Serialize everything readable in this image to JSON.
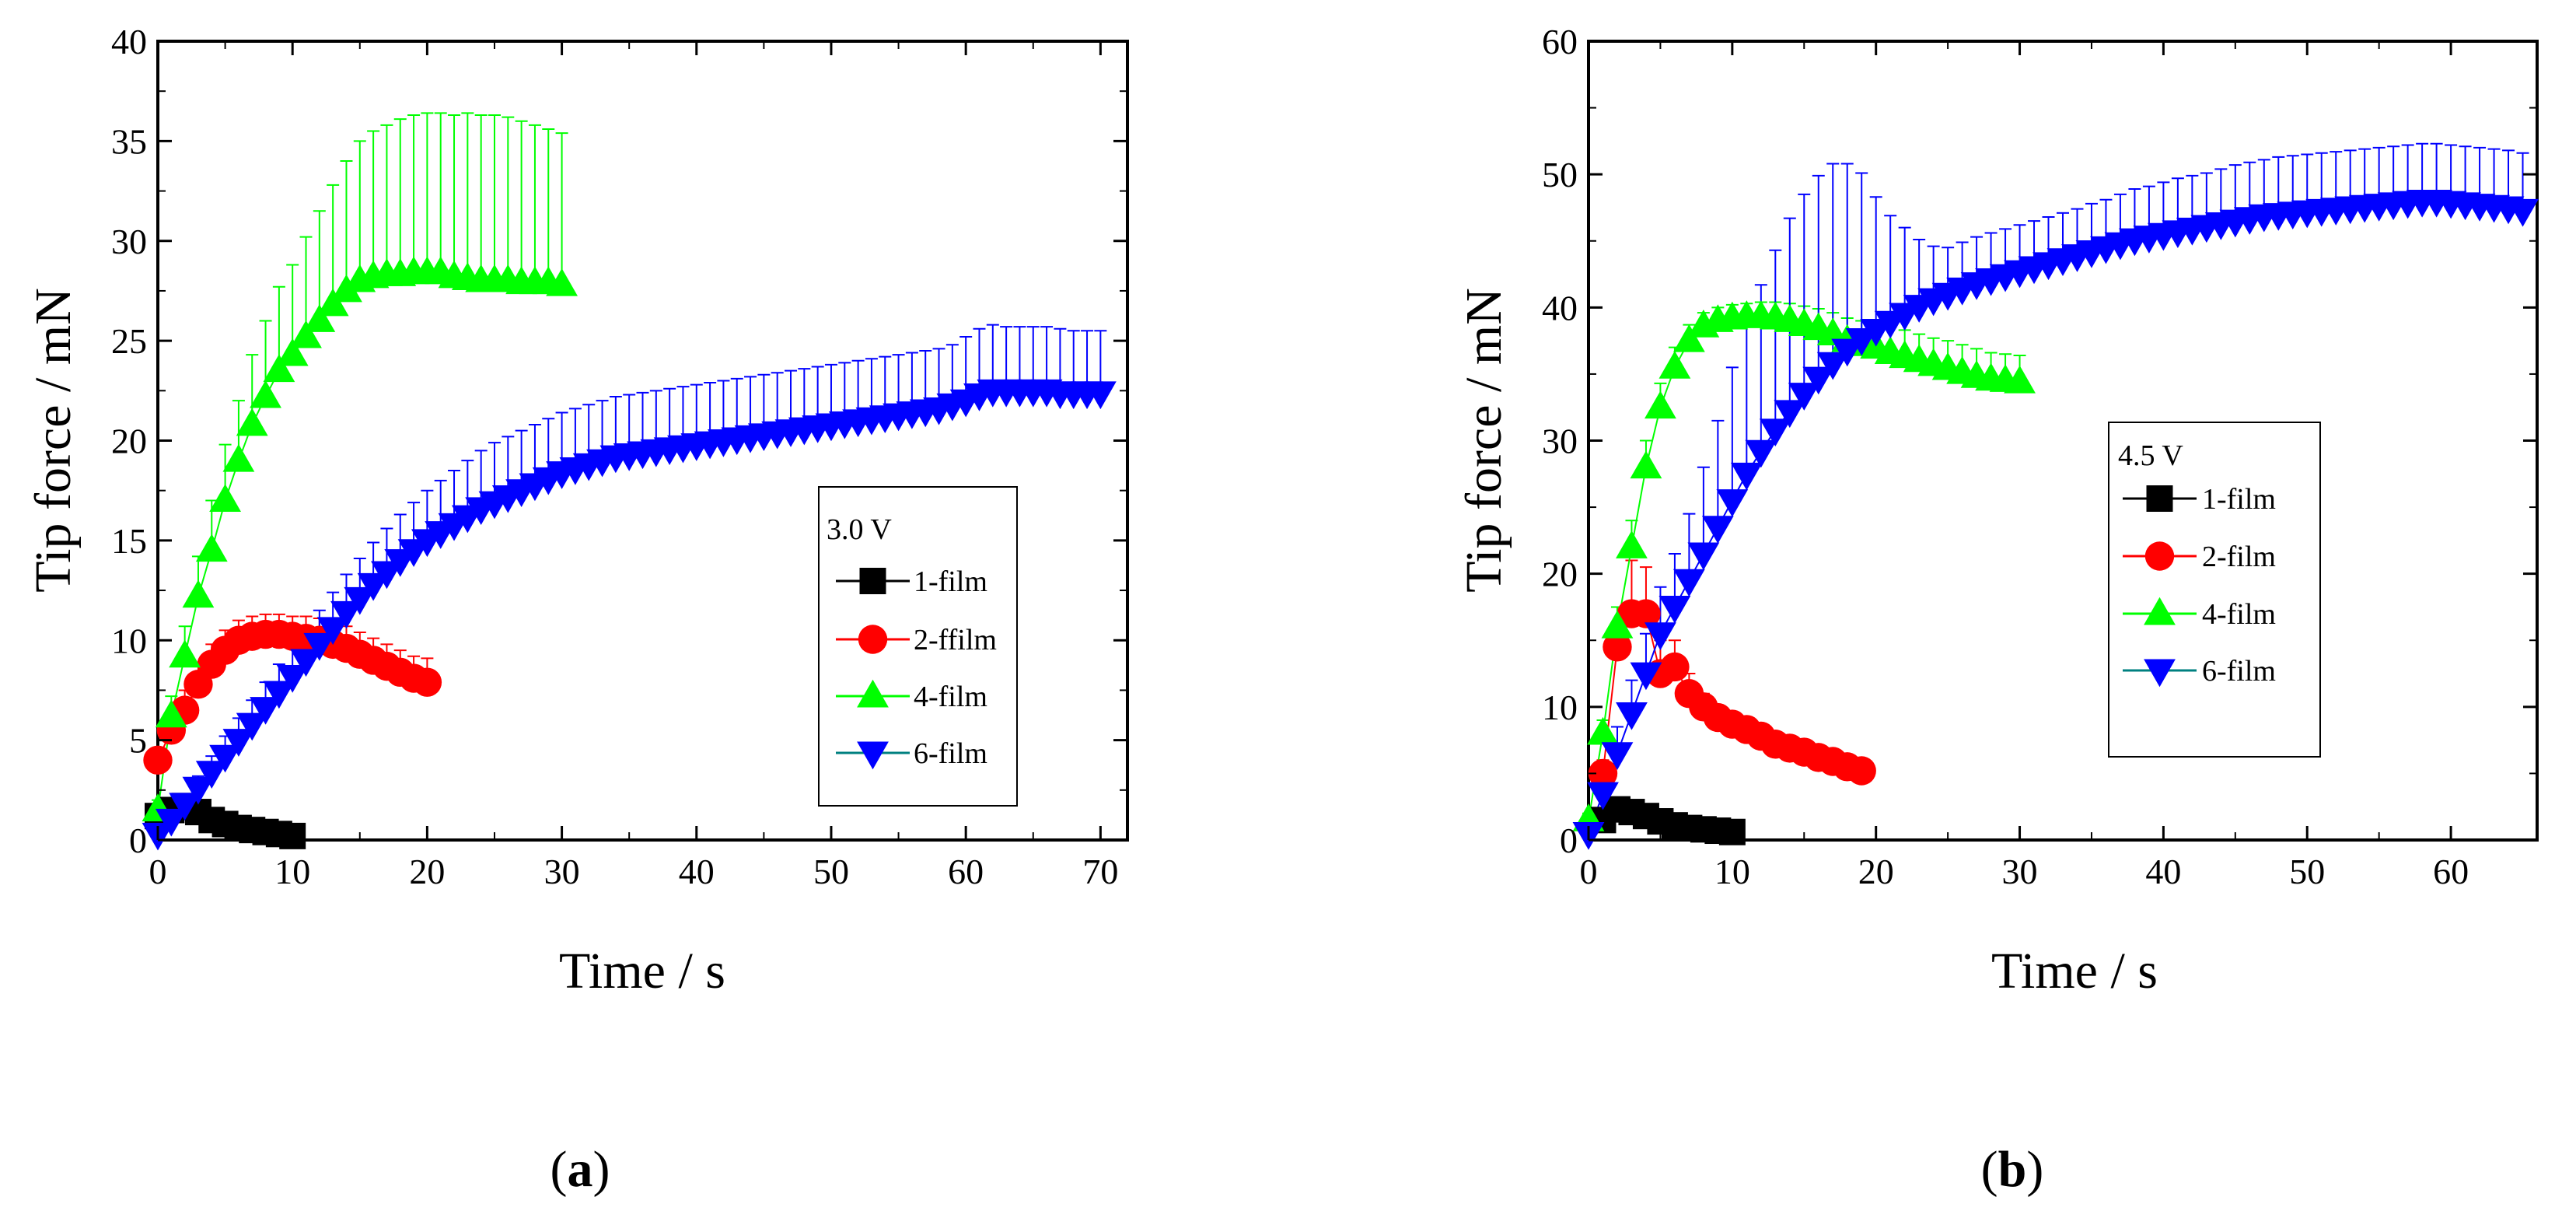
{
  "chart_data": [
    {
      "panel": "a",
      "type": "scatter",
      "caption_open": "(",
      "caption_label": "a",
      "caption_close": ")",
      "xlabel": "Time / s",
      "ylabel": "Tip force / mN",
      "xlim": [
        0,
        72
      ],
      "ylim": [
        0,
        40
      ],
      "xticks": [
        0,
        10,
        20,
        30,
        40,
        50,
        60,
        70
      ],
      "yticks": [
        0,
        5,
        10,
        15,
        20,
        25,
        30,
        35,
        40
      ],
      "legend_title": "3.0 V",
      "legend_position": "center-right",
      "series": [
        {
          "name": "1-film",
          "color": "#000000",
          "marker": "square",
          "x": [
            0,
            1,
            2,
            3,
            4,
            5,
            6,
            7,
            8,
            9,
            10
          ],
          "y": [
            1.2,
            1.5,
            1.7,
            1.4,
            1.0,
            0.8,
            0.6,
            0.5,
            0.4,
            0.3,
            0.2
          ],
          "err": [
            0.3,
            0.4,
            0.4,
            0.3,
            0.3,
            0.2,
            0.2,
            0.2,
            0.1,
            0.1,
            0.1
          ]
        },
        {
          "name": "2-ffilm",
          "color": "#ff0000",
          "marker": "circle",
          "x": [
            0,
            1,
            2,
            3,
            4,
            5,
            6,
            7,
            8,
            9,
            10,
            11,
            12,
            13,
            14,
            15,
            16,
            17,
            18,
            19,
            20
          ],
          "y": [
            4.0,
            5.5,
            6.5,
            7.8,
            8.8,
            9.5,
            10.0,
            10.2,
            10.3,
            10.3,
            10.2,
            10.1,
            10.0,
            9.8,
            9.6,
            9.3,
            9.0,
            8.7,
            8.4,
            8.1,
            7.9
          ],
          "err": [
            0.5,
            0.8,
            1.0,
            1.0,
            1.0,
            1.0,
            1.0,
            1.0,
            1.0,
            1.0,
            1.0,
            1.1,
            1.1,
            1.1,
            1.1,
            1.1,
            1.1,
            1.1,
            1.1,
            1.1,
            1.2
          ]
        },
        {
          "name": "4-film",
          "color": "#00ff00",
          "marker": "triangle-up",
          "x": [
            0,
            1,
            2,
            3,
            4,
            5,
            6,
            7,
            8,
            9,
            10,
            11,
            12,
            13,
            14,
            15,
            16,
            17,
            18,
            19,
            20,
            21,
            22,
            23,
            24,
            25,
            26,
            27,
            28,
            29,
            30
          ],
          "y": [
            1.5,
            6.2,
            9.2,
            12.2,
            14.5,
            17.0,
            19.0,
            20.8,
            22.2,
            23.5,
            24.3,
            25.2,
            26.0,
            26.8,
            27.5,
            28.0,
            28.2,
            28.3,
            28.3,
            28.4,
            28.4,
            28.4,
            28.2,
            28.1,
            28.0,
            28.0,
            28.0,
            27.9,
            27.9,
            27.9,
            27.8
          ],
          "err": [
            0.5,
            1.0,
            1.5,
            2.0,
            2.5,
            2.8,
            3.0,
            3.5,
            3.8,
            4.2,
            4.5,
            5.0,
            5.5,
            6.0,
            6.5,
            7.0,
            7.3,
            7.5,
            7.8,
            7.9,
            8.0,
            8.0,
            8.1,
            8.3,
            8.3,
            8.3,
            8.2,
            8.1,
            7.9,
            7.7,
            7.6
          ]
        },
        {
          "name": "6-film",
          "color": "#0000ff",
          "marker": "triangle-down",
          "x": [
            0,
            1,
            2,
            3,
            4,
            5,
            6,
            7,
            8,
            9,
            10,
            11,
            12,
            13,
            14,
            15,
            16,
            17,
            18,
            19,
            20,
            21,
            22,
            23,
            24,
            25,
            26,
            27,
            28,
            29,
            30,
            31,
            32,
            33,
            34,
            35,
            36,
            37,
            38,
            39,
            40,
            41,
            42,
            43,
            44,
            45,
            46,
            47,
            48,
            49,
            50,
            51,
            52,
            53,
            54,
            55,
            56,
            57,
            58,
            59,
            60,
            61,
            62,
            63,
            64,
            65,
            66,
            67,
            68,
            69,
            70
          ],
          "y": [
            0.3,
            1.0,
            1.8,
            2.6,
            3.4,
            4.2,
            5.0,
            5.8,
            6.6,
            7.4,
            8.2,
            9.0,
            9.8,
            10.6,
            11.4,
            12.1,
            12.8,
            13.4,
            14.0,
            14.5,
            15.0,
            15.4,
            15.8,
            16.2,
            16.6,
            16.9,
            17.2,
            17.5,
            17.8,
            18.1,
            18.4,
            18.6,
            18.8,
            19.0,
            19.2,
            19.3,
            19.4,
            19.5,
            19.6,
            19.7,
            19.8,
            19.9,
            20.0,
            20.1,
            20.2,
            20.3,
            20.4,
            20.5,
            20.6,
            20.7,
            20.8,
            20.9,
            21.0,
            21.1,
            21.2,
            21.3,
            21.4,
            21.5,
            21.6,
            21.8,
            22.0,
            22.3,
            22.5,
            22.5,
            22.5,
            22.5,
            22.5,
            22.4,
            22.4,
            22.4,
            22.4
          ],
          "err": [
            0.1,
            0.2,
            0.4,
            0.6,
            0.8,
            1.0,
            1.1,
            1.2,
            1.3,
            1.4,
            1.5,
            1.6,
            1.7,
            1.8,
            1.9,
            2.0,
            2.1,
            2.2,
            2.3,
            2.4,
            2.5,
            2.6,
            2.7,
            2.8,
            2.9,
            3.0,
            3.0,
            3.0,
            3.0,
            3.0,
            3.0,
            3.0,
            3.0,
            3.0,
            3.0,
            3.0,
            3.0,
            3.0,
            3.0,
            3.0,
            3.0,
            3.0,
            3.0,
            3.0,
            3.0,
            3.0,
            3.0,
            3.0,
            3.0,
            3.0,
            3.0,
            3.0,
            3.0,
            3.0,
            3.0,
            3.0,
            3.0,
            3.0,
            3.0,
            3.0,
            3.2,
            3.3,
            3.3,
            3.2,
            3.2,
            3.2,
            3.2,
            3.2,
            3.1,
            3.1,
            3.1
          ]
        }
      ]
    },
    {
      "panel": "b",
      "type": "scatter",
      "caption_open": "(",
      "caption_label": "b",
      "caption_close": ")",
      "xlabel": "Time / s",
      "ylabel": "Tip force / mN",
      "xlim": [
        0,
        66
      ],
      "ylim": [
        0,
        60
      ],
      "xticks": [
        0,
        10,
        20,
        30,
        40,
        50,
        60
      ],
      "yticks": [
        0,
        10,
        20,
        30,
        40,
        50,
        60
      ],
      "legend_title": "4.5 V",
      "legend_position": "center-left",
      "series": [
        {
          "name": "1-film",
          "color": "#000000",
          "marker": "square",
          "x": [
            1,
            2,
            3,
            4,
            5,
            6,
            7,
            8,
            9,
            10
          ],
          "y": [
            1.5,
            2.3,
            2.1,
            1.8,
            1.4,
            1.1,
            0.9,
            0.8,
            0.7,
            0.6
          ],
          "err": [
            0.4,
            0.6,
            0.5,
            0.4,
            0.3,
            0.3,
            0.2,
            0.2,
            0.2,
            0.2
          ]
        },
        {
          "name": "2-film",
          "color": "#ff0000",
          "marker": "circle",
          "x": [
            1,
            2,
            3,
            4,
            5,
            6,
            7,
            8,
            9,
            10,
            11,
            12,
            13,
            14,
            15,
            16,
            17,
            18,
            19
          ],
          "y": [
            5.0,
            14.5,
            17.0,
            17.0,
            12.5,
            13.0,
            11.0,
            10.0,
            9.2,
            8.7,
            8.3,
            7.8,
            7.2,
            6.9,
            6.6,
            6.2,
            5.9,
            5.5,
            5.2
          ],
          "err": [
            1.0,
            3.0,
            4.0,
            3.5,
            2.5,
            2.0,
            1.5,
            1.0,
            0.8,
            0.7,
            0.6,
            0.5,
            0.5,
            0.4,
            0.4,
            0.4,
            0.4,
            0.3,
            0.3
          ]
        },
        {
          "name": "4-film",
          "color": "#00ff00",
          "marker": "triangle-up",
          "x": [
            0,
            1,
            2,
            3,
            4,
            5,
            6,
            7,
            8,
            9,
            10,
            11,
            12,
            13,
            14,
            15,
            16,
            17,
            18,
            19,
            20,
            21,
            22,
            23,
            24,
            25,
            26,
            27,
            28,
            29,
            30
          ],
          "y": [
            1.5,
            8.0,
            16.0,
            22.0,
            28.0,
            32.5,
            35.5,
            37.5,
            38.6,
            39.0,
            39.2,
            39.3,
            39.3,
            39.2,
            39.0,
            38.7,
            38.4,
            38.0,
            37.5,
            37.2,
            37.0,
            36.6,
            36.3,
            36.0,
            35.7,
            35.4,
            35.1,
            34.8,
            34.6,
            34.5,
            34.4
          ],
          "err": [
            0.5,
            1.0,
            1.5,
            2.0,
            2.0,
            1.8,
            1.5,
            1.2,
            1.0,
            1.0,
            1.0,
            1.0,
            1.1,
            1.2,
            1.3,
            1.4,
            1.5,
            1.6,
            1.7,
            1.8,
            1.8,
            1.9,
            2.0,
            2.0,
            2.0,
            2.1,
            2.1,
            2.1,
            2.0,
            2.0,
            2.0
          ]
        },
        {
          "name": "6-film",
          "color": "#0000ff",
          "marker": "triangle-down",
          "x": [
            0,
            1,
            2,
            3,
            4,
            5,
            6,
            7,
            8,
            9,
            10,
            11,
            12,
            13,
            14,
            15,
            16,
            17,
            18,
            19,
            20,
            21,
            22,
            23,
            24,
            25,
            26,
            27,
            28,
            29,
            30,
            31,
            32,
            33,
            34,
            35,
            36,
            37,
            38,
            39,
            40,
            41,
            42,
            43,
            44,
            45,
            46,
            47,
            48,
            49,
            50,
            51,
            52,
            53,
            54,
            55,
            56,
            57,
            58,
            59,
            60,
            61,
            62,
            63,
            64,
            65
          ],
          "y": [
            0.5,
            3.5,
            6.5,
            9.5,
            12.5,
            15.5,
            17.5,
            19.5,
            21.5,
            23.5,
            25.5,
            27.5,
            29.2,
            30.8,
            32.2,
            33.5,
            34.7,
            35.8,
            36.8,
            37.6,
            38.3,
            38.9,
            39.5,
            40.1,
            40.6,
            41.0,
            41.4,
            41.8,
            42.1,
            42.4,
            42.7,
            43.0,
            43.3,
            43.6,
            43.9,
            44.2,
            44.5,
            44.8,
            45.1,
            45.3,
            45.5,
            45.7,
            45.9,
            46.1,
            46.3,
            46.5,
            46.7,
            46.9,
            47.0,
            47.1,
            47.2,
            47.3,
            47.4,
            47.5,
            47.6,
            47.7,
            47.8,
            47.9,
            48.0,
            48.0,
            47.9,
            47.8,
            47.7,
            47.6,
            47.5,
            47.3
          ],
          "err": [
            0.2,
            1.0,
            2.0,
            2.5,
            3.0,
            3.5,
            4.0,
            5.0,
            6.5,
            8.0,
            10.0,
            11.5,
            12.5,
            13.5,
            14.5,
            15.0,
            15.2,
            15.0,
            14.0,
            12.5,
            10.0,
            8.0,
            6.5,
            5.0,
            4.0,
            3.5,
            3.5,
            3.5,
            3.5,
            3.5,
            3.5,
            3.5,
            3.5,
            3.5,
            3.5,
            3.6,
            3.6,
            3.7,
            3.8,
            3.8,
            3.9,
            4.0,
            4.0,
            4.0,
            4.1,
            4.2,
            4.2,
            4.2,
            4.3,
            4.3,
            4.3,
            4.3,
            4.3,
            4.3,
            4.3,
            4.3,
            4.3,
            4.3,
            4.3,
            4.3,
            4.3,
            4.3,
            4.3,
            4.3,
            4.3,
            4.3
          ]
        }
      ]
    }
  ]
}
